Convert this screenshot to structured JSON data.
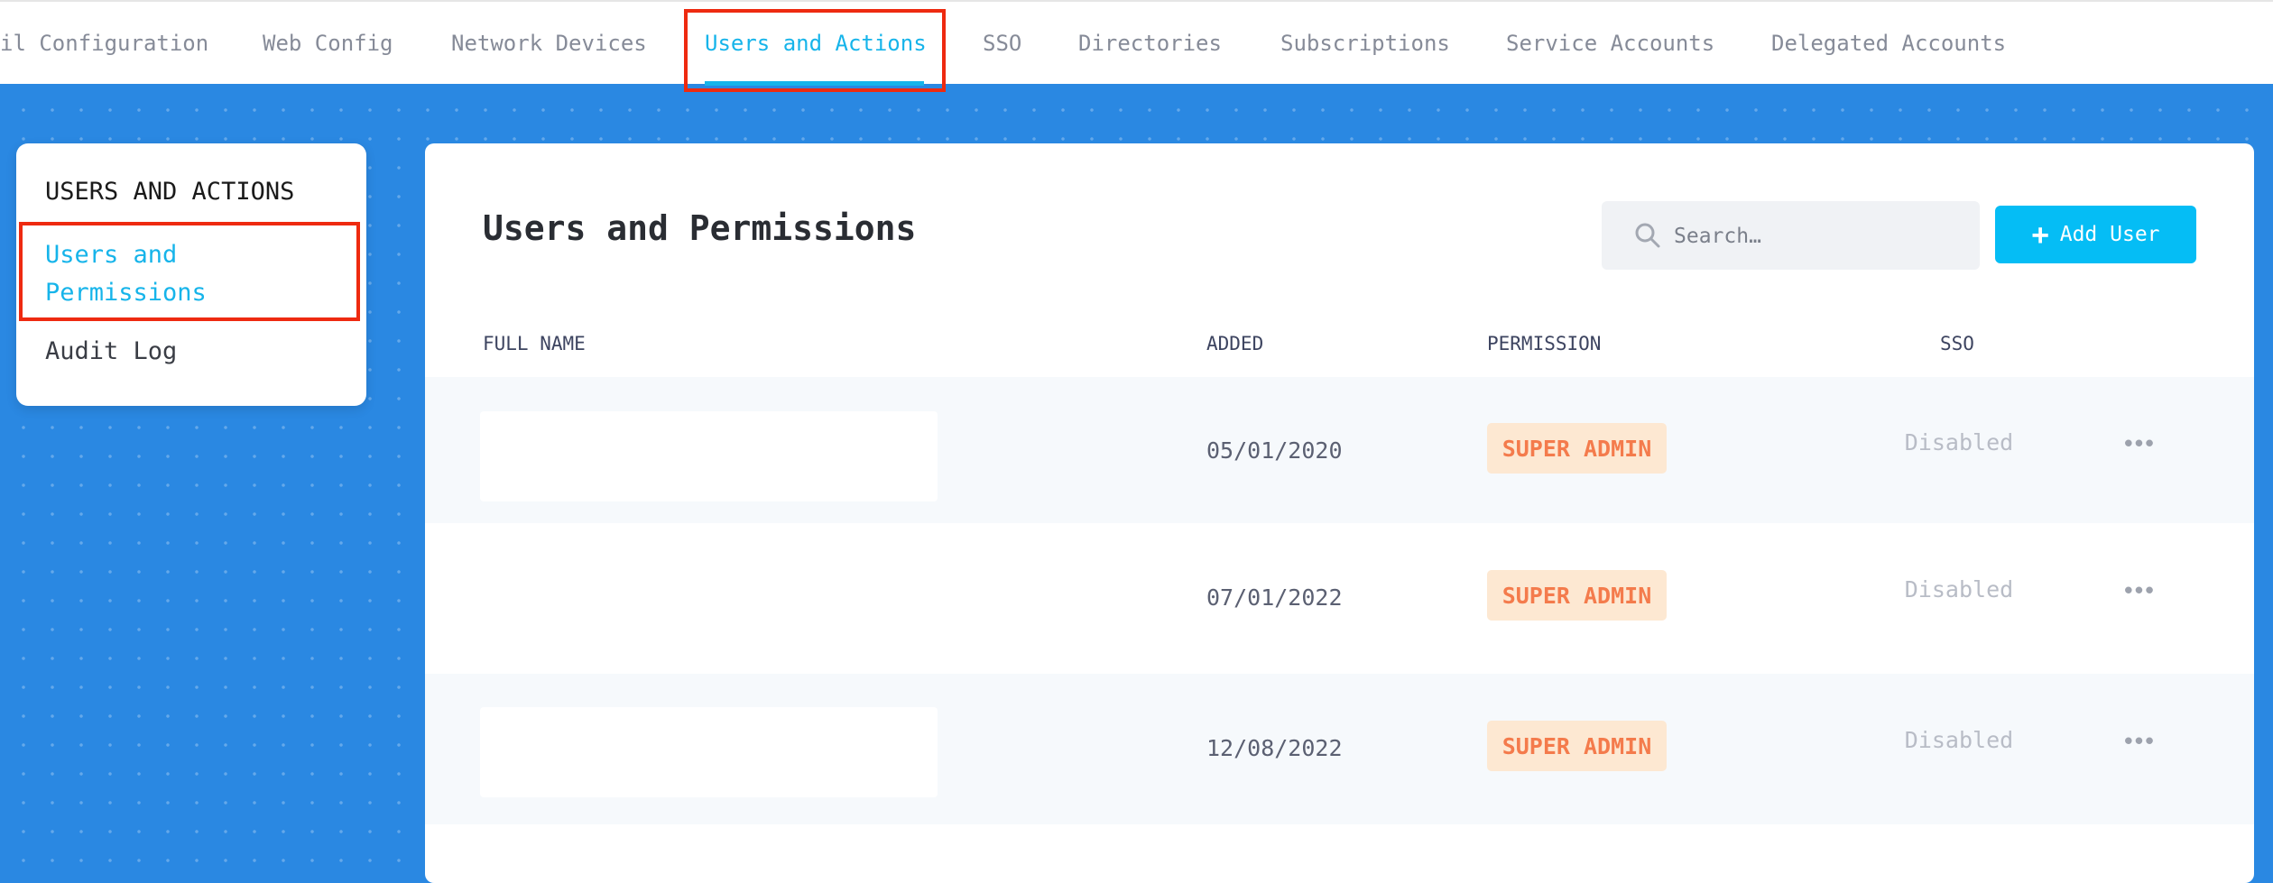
{
  "tabs": [
    {
      "label": "il Configuration"
    },
    {
      "label": "Web Config"
    },
    {
      "label": "Network Devices"
    },
    {
      "label": "Users and Actions",
      "active": true
    },
    {
      "label": "SSO"
    },
    {
      "label": "Directories"
    },
    {
      "label": "Subscriptions"
    },
    {
      "label": "Service Accounts"
    },
    {
      "label": "Delegated Accounts"
    }
  ],
  "sidebar": {
    "title": "USERS AND ACTIONS",
    "items": [
      {
        "label_line1": "Users and",
        "label_line2": "Permissions",
        "active": true
      },
      {
        "label": "Audit Log"
      }
    ]
  },
  "main": {
    "title": "Users and Permissions",
    "search_placeholder": "Search…",
    "add_user_label": "Add User",
    "columns": [
      "FULL NAME",
      "ADDED",
      "PERMISSION",
      "SSO"
    ],
    "rows": [
      {
        "added": "05/01/2020",
        "permission": "SUPER ADMIN",
        "sso": "Disabled"
      },
      {
        "added": "07/01/2022",
        "permission": "SUPER ADMIN",
        "sso": "Disabled"
      },
      {
        "added": "12/08/2022",
        "permission": "SUPER ADMIN",
        "sso": "Disabled"
      }
    ]
  },
  "colors": {
    "accent": "#16b4ea",
    "background": "#2a88e2",
    "badge_text": "#f47b4c",
    "badge_bg": "#fde8d2",
    "highlight": "#ee2a10"
  }
}
